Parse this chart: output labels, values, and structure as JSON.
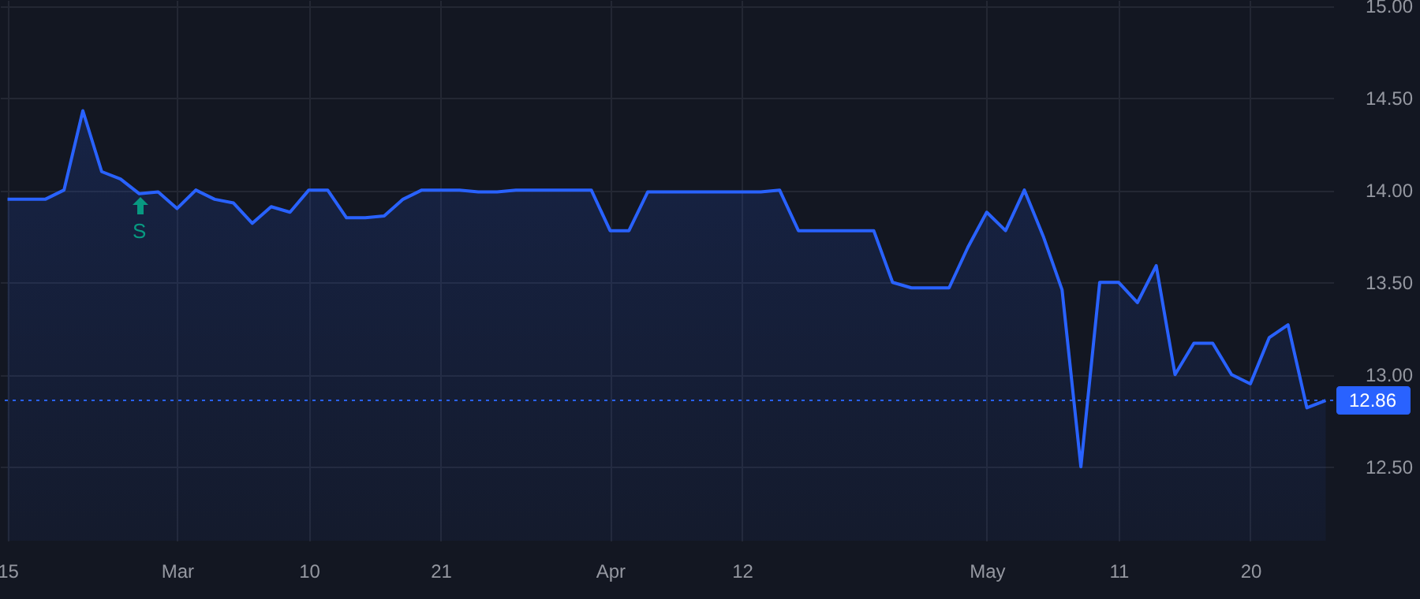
{
  "chart_data": {
    "type": "area",
    "categories": [
      "15",
      null,
      null,
      null,
      null,
      null,
      null,
      null,
      null,
      "Mar",
      null,
      null,
      null,
      null,
      null,
      null,
      "10",
      null,
      null,
      null,
      null,
      null,
      null,
      "21",
      null,
      null,
      null,
      null,
      null,
      null,
      null,
      null,
      "Apr",
      null,
      null,
      null,
      null,
      null,
      null,
      "12",
      null,
      null,
      null,
      null,
      null,
      null,
      null,
      null,
      null,
      null,
      null,
      null,
      "May",
      null,
      null,
      null,
      null,
      null,
      null,
      "11",
      null,
      null,
      null,
      null,
      null,
      null,
      "20",
      null,
      null,
      null,
      null
    ],
    "series": [
      {
        "color": "#2962ff",
        "values": [
          13.95,
          13.95,
          13.95,
          14.0,
          14.43,
          14.1,
          14.06,
          13.98,
          13.99,
          13.9,
          14.0,
          13.95,
          13.93,
          13.82,
          13.91,
          13.88,
          14.0,
          14.0,
          13.85,
          13.85,
          13.86,
          13.95,
          14.0,
          14.0,
          14.0,
          13.99,
          13.99,
          14.0,
          14.0,
          14.0,
          14.0,
          14.0,
          13.78,
          13.78,
          13.99,
          13.99,
          13.99,
          13.99,
          13.99,
          13.99,
          13.99,
          14.0,
          13.78,
          13.78,
          13.78,
          13.78,
          13.78,
          13.5,
          13.47,
          13.47,
          13.47,
          13.69,
          13.88,
          13.78,
          14.0,
          13.75,
          13.46,
          12.5,
          13.5,
          13.5,
          13.39,
          13.59,
          13.0,
          13.17,
          13.17,
          13.0,
          12.95,
          13.2,
          13.27,
          12.82,
          12.86
        ]
      }
    ],
    "ylim": [
      12.1,
      15.03
    ],
    "yticks": [
      {
        "value": 12.5,
        "label": "12.50"
      },
      {
        "value": 13,
        "label": "13.00"
      },
      {
        "value": 13.5,
        "label": "13.50"
      },
      {
        "value": 14,
        "label": "14.00"
      },
      {
        "value": 14.5,
        "label": "14.50"
      },
      {
        "value": 15,
        "label": "15.00"
      }
    ],
    "grid": true,
    "ref_lines": [
      {
        "axis": "y",
        "value": 12.86,
        "label": "12.86",
        "color": "#2962ff",
        "line_style": "dotted"
      }
    ],
    "annotations": [
      "S"
    ]
  }
}
